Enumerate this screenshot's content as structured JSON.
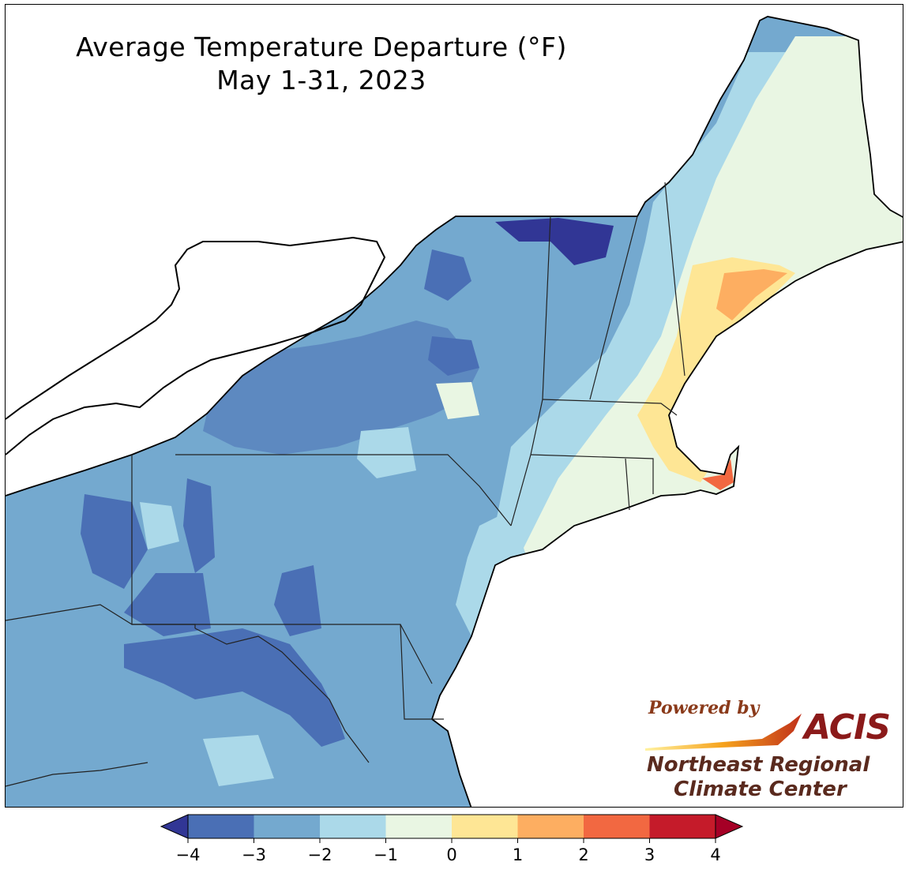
{
  "title": {
    "line1": "Average Temperature Departure (°F)",
    "line2": "May 1-31, 2023"
  },
  "colorbar": {
    "ticks": [
      "−4",
      "−3",
      "−2",
      "−1",
      "0",
      "1",
      "2",
      "3",
      "4"
    ],
    "bins": [
      {
        "range": "below -4",
        "color": "#313695"
      },
      {
        "range": "-4 to -3",
        "color": "#4a6fb5"
      },
      {
        "range": "-3 to -2",
        "color": "#74a9cf"
      },
      {
        "range": "-2 to -1",
        "color": "#abd9e9"
      },
      {
        "range": "-1 to 0",
        "color": "#e9f6e3"
      },
      {
        "range": "0 to 1",
        "color": "#fee695"
      },
      {
        "range": "1 to 2",
        "color": "#fdae61"
      },
      {
        "range": "2 to 3",
        "color": "#f26841"
      },
      {
        "range": "3 to 4",
        "color": "#c51b2a"
      },
      {
        "range": "above 4",
        "color": "#a50026"
      }
    ]
  },
  "logo": {
    "powered_by": "Powered by",
    "acis": "ACIS",
    "org_line1": "Northeast Regional",
    "org_line2": "Climate Center"
  }
}
